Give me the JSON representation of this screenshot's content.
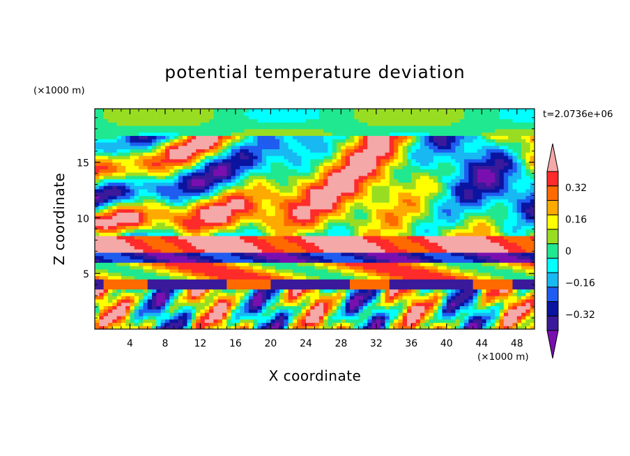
{
  "chart_data": {
    "type": "heatmap",
    "title": "potential temperature deviation",
    "xlabel": "X coordinate",
    "ylabel": "Z coordinate",
    "x_unit": "(×1000 m)",
    "y_unit": "(×1000 m)",
    "time_label": "t=2.0736e+06",
    "xlim": [
      0,
      50
    ],
    "ylim": [
      0,
      19.8
    ],
    "x_ticks": [
      4,
      8,
      12,
      16,
      20,
      24,
      28,
      32,
      36,
      40,
      44,
      48
    ],
    "y_ticks": [
      5,
      10,
      15
    ],
    "colorbar": {
      "levels": [
        -0.48,
        -0.4,
        -0.32,
        -0.24,
        -0.16,
        -0.08,
        0,
        0.08,
        0.16,
        0.24,
        0.32,
        0.4,
        0.48
      ],
      "labeled_ticks": [
        "0.32",
        "0.16",
        "0",
        "−0.16",
        "−0.32"
      ],
      "labeled_values": [
        0.32,
        0.16,
        0,
        -0.16,
        -0.32
      ],
      "colors": [
        "#7a0fb0",
        "#3a1a9a",
        "#0a14a0",
        "#1f5cf0",
        "#18b8f2",
        "#00ffff",
        "#20e890",
        "#99dd22",
        "#ffff00",
        "#ffaa00",
        "#ff6a00",
        "#ff2a2a",
        "#f4a8a8"
      ],
      "extend": "both"
    },
    "grid": false
  }
}
